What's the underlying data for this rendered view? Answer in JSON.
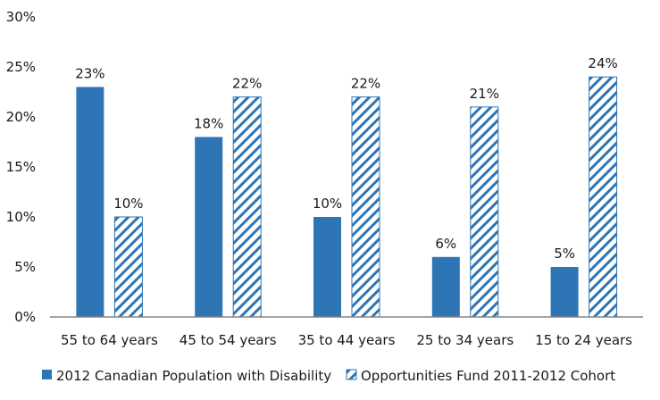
{
  "colors": {
    "series_1": "#2E75B6",
    "series_2": "#2E75B6",
    "axis": "#868686",
    "text": "#1a1a1a"
  },
  "chart_data": {
    "type": "bar",
    "title": "",
    "xlabel": "",
    "ylabel": "",
    "ylim": [
      0,
      30
    ],
    "y_ticks": [
      0,
      5,
      10,
      15,
      20,
      25,
      30
    ],
    "y_tick_labels": [
      "0%",
      "5%",
      "10%",
      "15%",
      "20%",
      "25%",
      "30%"
    ],
    "grid": false,
    "legend_position": "bottom",
    "categories": [
      "55 to 64 years",
      "45 to 54 years",
      "35 to 44 years",
      "25 to 34 years",
      "15 to 24 years"
    ],
    "series": [
      {
        "name": "2012 Canadian Population with Disability",
        "style": "solid",
        "values": [
          23,
          18,
          10,
          6,
          5
        ],
        "labels": [
          "23%",
          "18%",
          "10%",
          "6%",
          "5%"
        ]
      },
      {
        "name": "Opportunities Fund 2011-2012 Cohort",
        "style": "diagonal-hatch",
        "values": [
          10,
          22,
          22,
          21,
          24
        ],
        "labels": [
          "10%",
          "22%",
          "22%",
          "21%",
          "24%"
        ]
      }
    ]
  }
}
